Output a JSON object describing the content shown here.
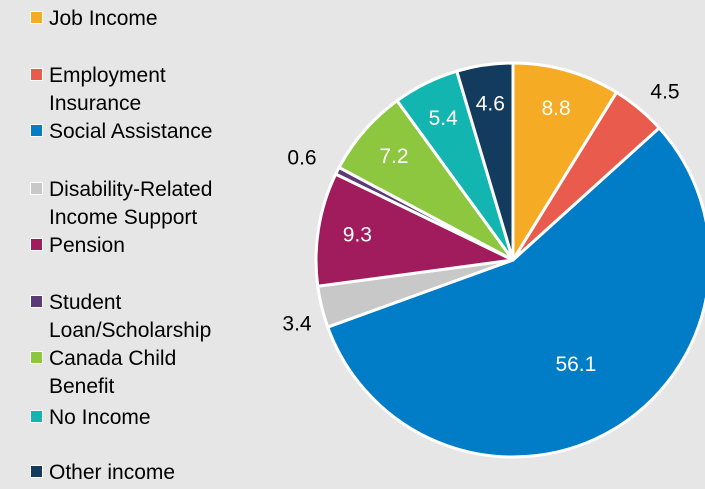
{
  "chart_data": {
    "type": "pie",
    "legend_position": "left",
    "slices": [
      {
        "label": "Job Income",
        "value": 8.8,
        "color": "#f5ab24",
        "value_label": "8.8",
        "label_inside": true
      },
      {
        "label": "Employment Insurance",
        "value": 4.5,
        "color": "#e85b4d",
        "value_label": "4.5",
        "label_inside": false
      },
      {
        "label": "Social Assistance",
        "value": 56.1,
        "color": "#007dc6",
        "value_label": "56.1",
        "label_inside": true
      },
      {
        "label": "Disability-Related Income Support",
        "value": 3.4,
        "color": "#c8c8c8",
        "value_label": "3.4",
        "label_inside": false
      },
      {
        "label": "Pension",
        "value": 9.3,
        "color": "#a01c5c",
        "value_label": "9.3",
        "label_inside": true
      },
      {
        "label": "Student Loan/Scholarship",
        "value": 0.6,
        "color": "#5b3a78",
        "value_label": "0.6",
        "label_inside": false
      },
      {
        "label": "Canada Child Benefit",
        "value": 7.2,
        "color": "#8dc63f",
        "value_label": "7.2",
        "label_inside": true
      },
      {
        "label": "No Income",
        "value": 5.4,
        "color": "#13b5b1",
        "value_label": "5.4",
        "label_inside": true
      },
      {
        "label": "Other income",
        "value": 4.6,
        "color": "#123b5e",
        "value_label": "4.6",
        "label_inside": true
      }
    ]
  }
}
